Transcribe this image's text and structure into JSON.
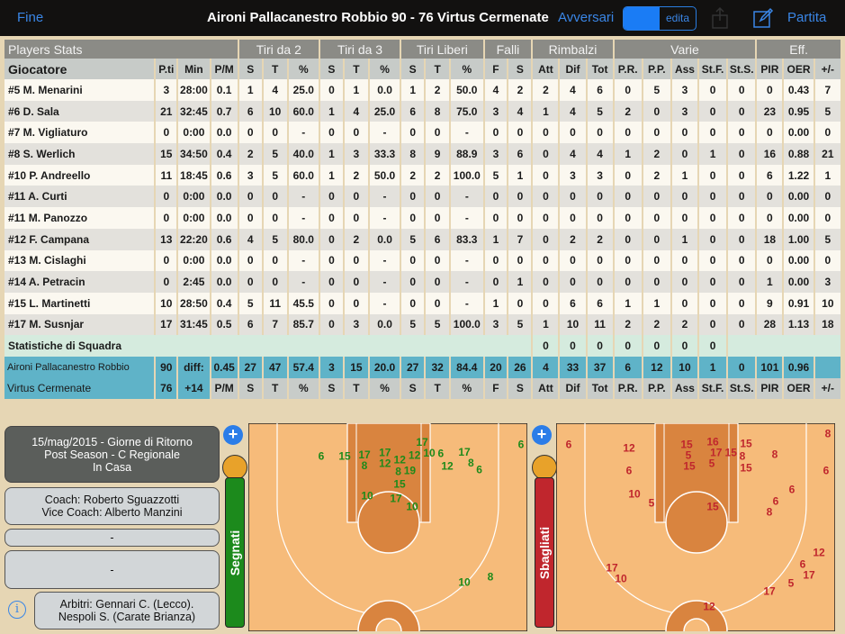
{
  "topbar": {
    "done": "Fine",
    "title": "Aironi Pallacanestro Robbio 90 - 76 Virtus Cermenate",
    "opponents": "Avversari",
    "toggle_label": "edita",
    "game": "Partita",
    "icons": [
      "share-icon",
      "edit-icon"
    ]
  },
  "table": {
    "group_headers": [
      "Players Stats",
      "Tiri da 2",
      "Tiri da 3",
      "Tiri Liberi",
      "Falli",
      "Rimbalzi",
      "Varie",
      "Eff."
    ],
    "columns": [
      "Giocatore",
      "P.ti",
      "Min",
      "P/M",
      "S",
      "T",
      "%",
      "S",
      "T",
      "%",
      "S",
      "T",
      "%",
      "F",
      "S",
      "Att",
      "Dif",
      "Tot",
      "P.R.",
      "P.P.",
      "Ass",
      "St.F.",
      "St.S.",
      "PIR",
      "OER",
      "+/-"
    ],
    "rows": [
      [
        "#5 M. Menarini",
        "3",
        "28:00",
        "0.1",
        "1",
        "4",
        "25.0",
        "0",
        "1",
        "0.0",
        "1",
        "2",
        "50.0",
        "4",
        "2",
        "2",
        "4",
        "6",
        "0",
        "5",
        "3",
        "0",
        "0",
        "0",
        "0.43",
        "7"
      ],
      [
        "#6 D. Sala",
        "21",
        "32:45",
        "0.7",
        "6",
        "10",
        "60.0",
        "1",
        "4",
        "25.0",
        "6",
        "8",
        "75.0",
        "3",
        "4",
        "1",
        "4",
        "5",
        "2",
        "0",
        "3",
        "0",
        "0",
        "23",
        "0.95",
        "5"
      ],
      [
        "#7 M. Vigliaturo",
        "0",
        "0:00",
        "0.0",
        "0",
        "0",
        "-",
        "0",
        "0",
        "-",
        "0",
        "0",
        "-",
        "0",
        "0",
        "0",
        "0",
        "0",
        "0",
        "0",
        "0",
        "0",
        "0",
        "0",
        "0.00",
        "0"
      ],
      [
        "#8 S. Werlich",
        "15",
        "34:50",
        "0.4",
        "2",
        "5",
        "40.0",
        "1",
        "3",
        "33.3",
        "8",
        "9",
        "88.9",
        "3",
        "6",
        "0",
        "4",
        "4",
        "1",
        "2",
        "0",
        "1",
        "0",
        "16",
        "0.88",
        "21"
      ],
      [
        "#10 P. Andreello",
        "11",
        "18:45",
        "0.6",
        "3",
        "5",
        "60.0",
        "1",
        "2",
        "50.0",
        "2",
        "2",
        "100.0",
        "5",
        "1",
        "0",
        "3",
        "3",
        "0",
        "2",
        "1",
        "0",
        "0",
        "6",
        "1.22",
        "1"
      ],
      [
        "#11 A. Curti",
        "0",
        "0:00",
        "0.0",
        "0",
        "0",
        "-",
        "0",
        "0",
        "-",
        "0",
        "0",
        "-",
        "0",
        "0",
        "0",
        "0",
        "0",
        "0",
        "0",
        "0",
        "0",
        "0",
        "0",
        "0.00",
        "0"
      ],
      [
        "#11 M. Panozzo",
        "0",
        "0:00",
        "0.0",
        "0",
        "0",
        "-",
        "0",
        "0",
        "-",
        "0",
        "0",
        "-",
        "0",
        "0",
        "0",
        "0",
        "0",
        "0",
        "0",
        "0",
        "0",
        "0",
        "0",
        "0.00",
        "0"
      ],
      [
        "#12 F. Campana",
        "13",
        "22:20",
        "0.6",
        "4",
        "5",
        "80.0",
        "0",
        "2",
        "0.0",
        "5",
        "6",
        "83.3",
        "1",
        "7",
        "0",
        "2",
        "2",
        "0",
        "0",
        "1",
        "0",
        "0",
        "18",
        "1.00",
        "5"
      ],
      [
        "#13 M. Cislaghi",
        "0",
        "0:00",
        "0.0",
        "0",
        "0",
        "-",
        "0",
        "0",
        "-",
        "0",
        "0",
        "-",
        "0",
        "0",
        "0",
        "0",
        "0",
        "0",
        "0",
        "0",
        "0",
        "0",
        "0",
        "0.00",
        "0"
      ],
      [
        "#14 A. Petracin",
        "0",
        "2:45",
        "0.0",
        "0",
        "0",
        "-",
        "0",
        "0",
        "-",
        "0",
        "0",
        "-",
        "0",
        "1",
        "0",
        "0",
        "0",
        "0",
        "0",
        "0",
        "0",
        "0",
        "1",
        "0.00",
        "3"
      ],
      [
        "#15 L. Martinetti",
        "10",
        "28:50",
        "0.4",
        "5",
        "11",
        "45.5",
        "0",
        "0",
        "-",
        "0",
        "0",
        "-",
        "1",
        "0",
        "0",
        "6",
        "6",
        "1",
        "1",
        "0",
        "0",
        "0",
        "9",
        "0.91",
        "10"
      ],
      [
        "#17 M. Susnjar",
        "17",
        "31:45",
        "0.5",
        "6",
        "7",
        "85.7",
        "0",
        "3",
        "0.0",
        "5",
        "5",
        "100.0",
        "3",
        "5",
        "1",
        "10",
        "11",
        "2",
        "2",
        "2",
        "0",
        "0",
        "28",
        "1.13",
        "18"
      ]
    ],
    "team_stats": {
      "label": "Statistiche di Squadra",
      "values": [
        "0",
        "0",
        "0",
        "0",
        "0",
        "0",
        "0"
      ]
    },
    "team1": {
      "name": "Aironi Pallacanestro Robbio",
      "points": "90",
      "diff_label": "diff:",
      "values": [
        "0.45",
        "27",
        "47",
        "57.4",
        "3",
        "15",
        "20.0",
        "27",
        "32",
        "84.4",
        "20",
        "26",
        "4",
        "33",
        "37",
        "6",
        "12",
        "10",
        "1",
        "0",
        "101",
        "0.96",
        ""
      ]
    },
    "team2": {
      "name": "Virtus Cermenate",
      "points": "76",
      "diff": "+14",
      "footer": [
        "P/M",
        "S",
        "T",
        "%",
        "S",
        "T",
        "%",
        "S",
        "T",
        "%",
        "F",
        "S",
        "Att",
        "Dif",
        "Tot",
        "P.R.",
        "P.P.",
        "Ass",
        "St.F.",
        "St.S.",
        "PIR",
        "OER",
        "+/-"
      ]
    }
  },
  "info": {
    "match": [
      "15/mag/2015 - Giorne di Ritorno",
      "Post Season - C Regionale",
      "In Casa"
    ],
    "coach": [
      "Coach: Roberto Sguazzotti",
      "Vice Coach: Alberto Manzini"
    ],
    "field1": "-",
    "field2": "-",
    "referees": [
      "Arbitri: Gennari C. (Lecco).",
      "Nespoli S. (Carate Brianza)"
    ]
  },
  "shots": {
    "made_label": "Segnati",
    "missed_label": "Sbagliati",
    "colors": {
      "made": "#1f8a1a",
      "missed": "#c0262d",
      "court": "#f6bb7a",
      "paint": "#d9843f"
    },
    "made": [
      "6",
      "15",
      "17",
      "8",
      "17",
      "12",
      "12",
      "19",
      "8",
      "17",
      "12",
      "10",
      "6",
      "17",
      "8",
      "6",
      "12",
      "15",
      "10",
      "17",
      "10",
      "10",
      "8",
      "6"
    ],
    "missed": [
      "6",
      "12",
      "6",
      "10",
      "5",
      "15",
      "5",
      "15",
      "16",
      "17",
      "5",
      "15",
      "8",
      "15",
      "15",
      "8",
      "6",
      "8",
      "6",
      "6",
      "8",
      "15",
      "12",
      "6",
      "17",
      "5",
      "17",
      "17",
      "10",
      "12"
    ]
  }
}
